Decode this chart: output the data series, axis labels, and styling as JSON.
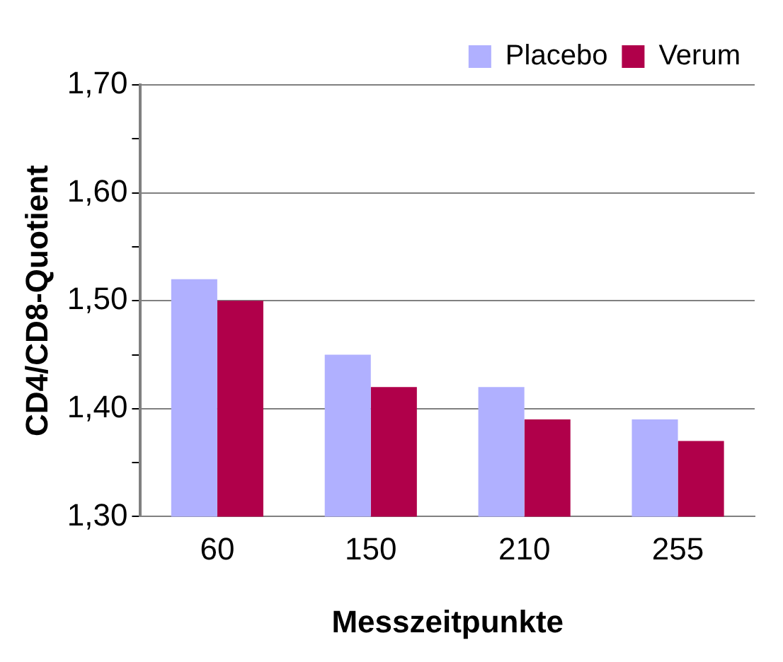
{
  "chart_data": {
    "type": "bar",
    "xlabel": "Messzeitpunkte",
    "ylabel": "CD4/CD8-Quotient",
    "categories": [
      "60",
      "150",
      "210",
      "255"
    ],
    "series": [
      {
        "name": "Placebo",
        "color": "#b0b0ff",
        "values": [
          1.52,
          1.45,
          1.42,
          1.39
        ]
      },
      {
        "name": "Verum",
        "color": "#b0004a",
        "values": [
          1.5,
          1.42,
          1.39,
          1.37
        ]
      }
    ],
    "ylim": [
      1.3,
      1.7
    ],
    "yticks": [
      {
        "value": 1.3,
        "label": "1,30"
      },
      {
        "value": 1.35,
        "label": null
      },
      {
        "value": 1.4,
        "label": "1,40"
      },
      {
        "value": 1.45,
        "label": null
      },
      {
        "value": 1.5,
        "label": "1,50"
      },
      {
        "value": 1.55,
        "label": null
      },
      {
        "value": 1.6,
        "label": "1,60"
      },
      {
        "value": 1.65,
        "label": null
      },
      {
        "value": 1.7,
        "label": "1,70"
      }
    ],
    "grid": "y",
    "legend": "top right"
  }
}
